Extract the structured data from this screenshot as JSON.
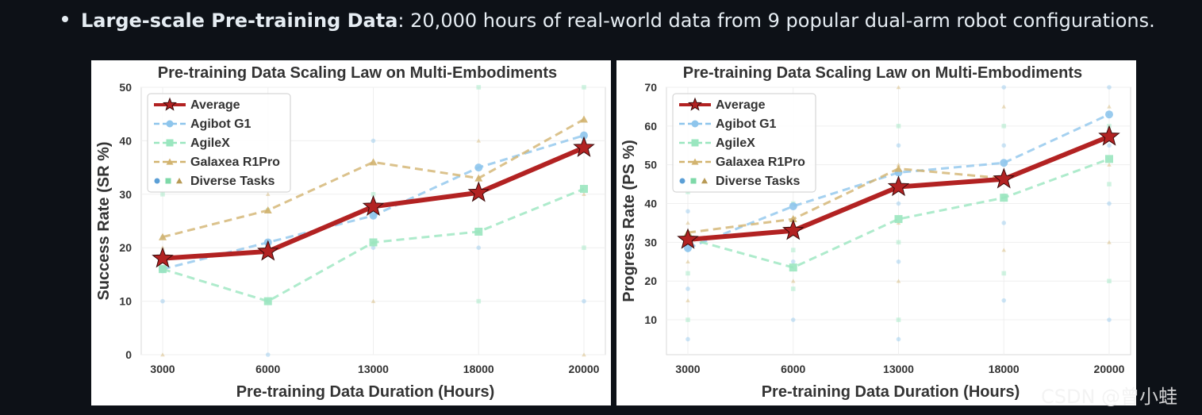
{
  "bullet": {
    "title": "Large-scale Pre-training Data",
    "sep": ":",
    "text": " 20,000 hours of real-world data from 9 popular dual-arm robot configurations."
  },
  "watermark": "CSDN @曾小蛙",
  "chart_data": [
    {
      "type": "line",
      "title": "Pre-training Data Scaling Law on Multi-Embodiments",
      "xlabel": "Pre-training Data Duration (Hours)",
      "ylabel": "Success Rate (SR %)",
      "categories": [
        "3000",
        "6000",
        "13000",
        "18000",
        "20000"
      ],
      "ylim": [
        0,
        50
      ],
      "yticks": [
        0,
        10,
        20,
        30,
        40,
        50
      ],
      "grid": true,
      "legend_position": "top-left",
      "series": [
        {
          "name": "Average",
          "values": [
            18,
            19.3,
            27.7,
            30.3,
            38.7
          ],
          "color": "#b22222",
          "marker": "star",
          "style": "solid"
        },
        {
          "name": "Agibot G1",
          "values": [
            16,
            21,
            26,
            35,
            41
          ],
          "color": "#8ec5ec",
          "marker": "circle",
          "style": "dashed"
        },
        {
          "name": "AgileX",
          "values": [
            16,
            10,
            21,
            23,
            31
          ],
          "color": "#9ae6bf",
          "marker": "square",
          "style": "dashed"
        },
        {
          "name": "Galaxea R1Pro",
          "values": [
            22,
            27,
            36,
            33,
            44
          ],
          "color": "#d2b36f",
          "marker": "triangle",
          "style": "dashed"
        }
      ],
      "legend_extra": "Diverse Tasks",
      "task_points": [
        [
          10,
          16,
          20,
          22,
          30,
          0
        ],
        [
          10,
          20,
          30,
          0,
          27,
          21
        ],
        [
          20,
          30,
          10,
          40,
          26,
          21
        ],
        [
          20,
          10,
          40,
          30,
          50,
          23
        ],
        [
          10,
          20,
          30,
          40,
          50,
          0
        ]
      ]
    },
    {
      "type": "line",
      "title": "Pre-training Data Scaling Law on Multi-Embodiments",
      "xlabel": "Pre-training Data Duration (Hours)",
      "ylabel": "Progress Rate (PS %)",
      "categories": [
        "3000",
        "6000",
        "13000",
        "18000",
        "20000"
      ],
      "ylim": [
        1,
        70
      ],
      "yticks": [
        10,
        20,
        30,
        40,
        50,
        60,
        70
      ],
      "grid": true,
      "legend_position": "top-left",
      "series": [
        {
          "name": "Average",
          "values": [
            30.7,
            33.0,
            44.3,
            46.3,
            57.3
          ],
          "color": "#b22222",
          "marker": "star",
          "style": "solid"
        },
        {
          "name": "Agibot G1",
          "values": [
            28.5,
            39.3,
            48.0,
            50.5,
            63.0
          ],
          "color": "#8ec5ec",
          "marker": "circle",
          "style": "dashed"
        },
        {
          "name": "AgileX",
          "values": [
            31.0,
            23.5,
            36.0,
            41.5,
            51.5
          ],
          "color": "#9ae6bf",
          "marker": "square",
          "style": "dashed"
        },
        {
          "name": "Galaxea R1Pro",
          "values": [
            32.5,
            36.0,
            49.0,
            46.5,
            57.5
          ],
          "color": "#d2b36f",
          "marker": "triangle",
          "style": "dashed"
        }
      ],
      "legend_extra": "Diverse Tasks",
      "task_points": [
        [
          5,
          10,
          15,
          18,
          22,
          25,
          28,
          32,
          35,
          38,
          43
        ],
        [
          10,
          18,
          20,
          25,
          28,
          32,
          36,
          40,
          44,
          48
        ],
        [
          5,
          10,
          20,
          25,
          30,
          35,
          40,
          45,
          50,
          55,
          60,
          70
        ],
        [
          15,
          22,
          28,
          35,
          42,
          48,
          55,
          60,
          65,
          70
        ],
        [
          10,
          20,
          30,
          40,
          45,
          50,
          55,
          60,
          65,
          70
        ]
      ]
    }
  ]
}
